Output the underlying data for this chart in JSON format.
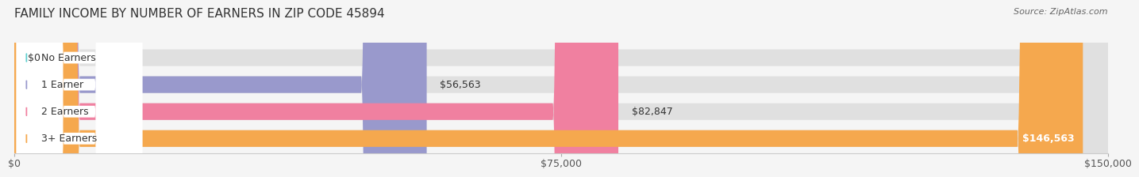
{
  "title": "FAMILY INCOME BY NUMBER OF EARNERS IN ZIP CODE 45894",
  "source": "Source: ZipAtlas.com",
  "categories": [
    "No Earners",
    "1 Earner",
    "2 Earners",
    "3+ Earners"
  ],
  "values": [
    0,
    56563,
    82847,
    146563
  ],
  "labels": [
    "$0",
    "$56,563",
    "$82,847",
    "$146,563"
  ],
  "bar_colors": [
    "#5ecfcf",
    "#9999cc",
    "#f080a0",
    "#f5a84e"
  ],
  "background_color": "#f5f5f5",
  "bar_bg_color": "#e0e0e0",
  "xlim": [
    0,
    150000
  ],
  "xticks": [
    0,
    75000,
    150000
  ],
  "xtick_labels": [
    "$0",
    "$75,000",
    "$150,000"
  ],
  "title_fontsize": 11,
  "source_fontsize": 8,
  "label_fontsize": 9,
  "tick_fontsize": 9,
  "bar_height": 0.62
}
